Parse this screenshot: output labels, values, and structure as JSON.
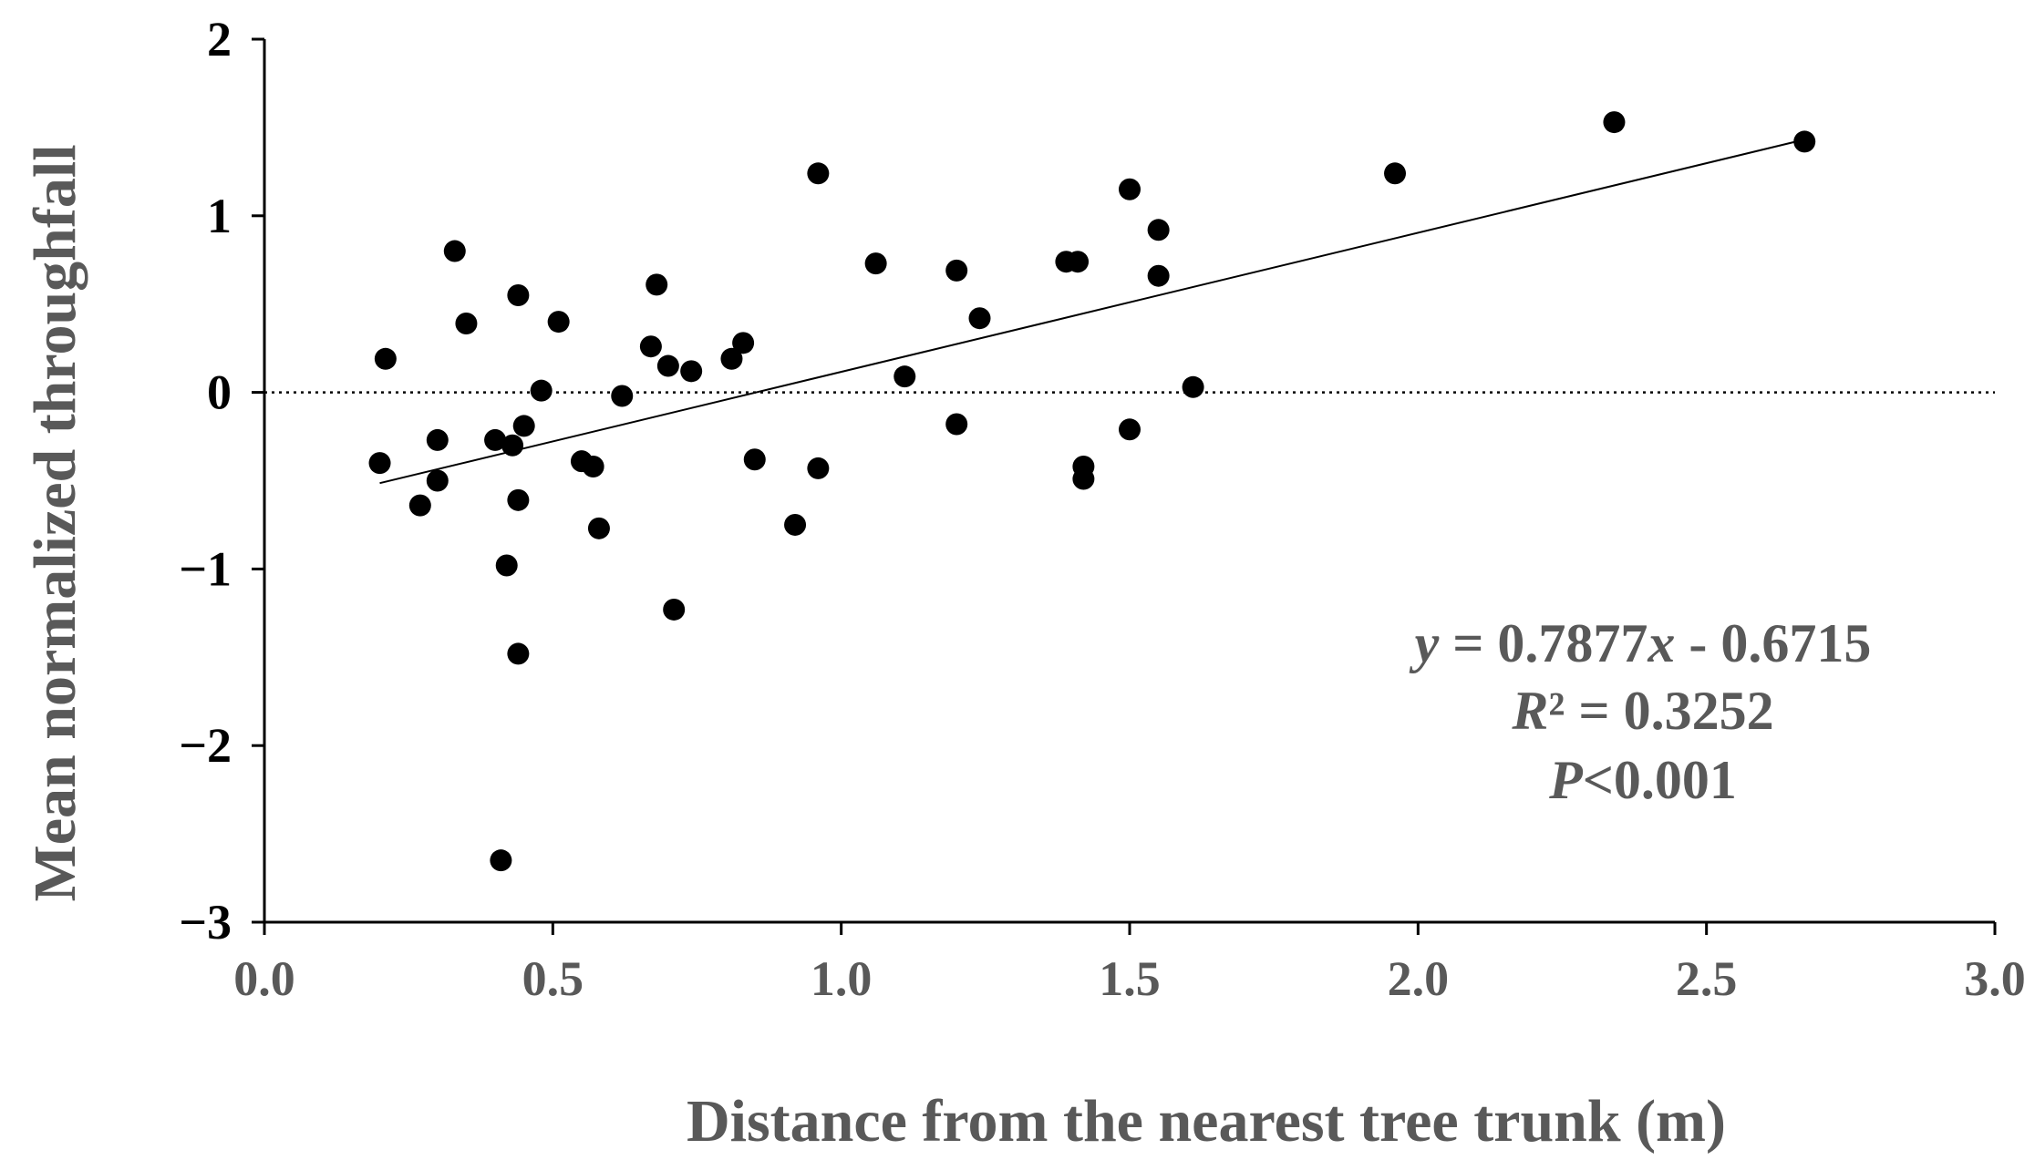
{
  "chart_data": {
    "type": "scatter",
    "title": "",
    "xlabel": "Distance from the nearest tree trunk (m)",
    "ylabel": "Mean normalized throughfall",
    "xlim": [
      0.0,
      3.0
    ],
    "ylim": [
      -3,
      2
    ],
    "xticks": [
      "0.0",
      "0.5",
      "1.0",
      "1.5",
      "2.0",
      "2.5",
      "3.0"
    ],
    "yticks": [
      "2",
      "1",
      "0",
      "−1",
      "−2",
      "−3"
    ],
    "ytick_values": [
      2,
      1,
      0,
      -1,
      -2,
      -3
    ],
    "xtick_values": [
      0.0,
      0.5,
      1.0,
      1.5,
      2.0,
      2.5,
      3.0
    ],
    "grid": false,
    "reference_line_y": 0,
    "trendline": {
      "slope": 0.7877,
      "intercept": -0.6715,
      "x_range": [
        0.2,
        2.67
      ]
    },
    "annotations": {
      "equation_var_y": "y",
      "equation_mid": " = 0.7877",
      "equation_var_x": "x",
      "equation_end": " - 0.6715",
      "r2_var": "R",
      "r2_rest": "² = 0.3252",
      "p_var": "P",
      "p_rest": "<0.001"
    },
    "points": [
      [
        0.2,
        -0.4
      ],
      [
        0.21,
        0.19
      ],
      [
        0.27,
        -0.64
      ],
      [
        0.3,
        -0.27
      ],
      [
        0.3,
        -0.5
      ],
      [
        0.33,
        0.8
      ],
      [
        0.35,
        0.39
      ],
      [
        0.4,
        -0.27
      ],
      [
        0.41,
        -2.65
      ],
      [
        0.42,
        -0.98
      ],
      [
        0.43,
        -0.3
      ],
      [
        0.44,
        0.55
      ],
      [
        0.44,
        -0.61
      ],
      [
        0.44,
        -1.48
      ],
      [
        0.45,
        -0.19
      ],
      [
        0.48,
        0.01
      ],
      [
        0.51,
        0.4
      ],
      [
        0.55,
        -0.39
      ],
      [
        0.57,
        -0.42
      ],
      [
        0.58,
        -0.77
      ],
      [
        0.62,
        -0.02
      ],
      [
        0.67,
        0.26
      ],
      [
        0.68,
        0.61
      ],
      [
        0.7,
        0.15
      ],
      [
        0.71,
        -1.23
      ],
      [
        0.74,
        0.12
      ],
      [
        0.81,
        0.19
      ],
      [
        0.83,
        0.28
      ],
      [
        0.85,
        -0.38
      ],
      [
        0.92,
        -0.75
      ],
      [
        0.96,
        1.24
      ],
      [
        0.96,
        -0.43
      ],
      [
        1.06,
        0.73
      ],
      [
        1.11,
        0.09
      ],
      [
        1.2,
        0.69
      ],
      [
        1.2,
        -0.18
      ],
      [
        1.24,
        0.42
      ],
      [
        1.39,
        0.74
      ],
      [
        1.41,
        0.74
      ],
      [
        1.42,
        -0.42
      ],
      [
        1.42,
        -0.49
      ],
      [
        1.5,
        1.15
      ],
      [
        1.5,
        -0.21
      ],
      [
        1.55,
        0.92
      ],
      [
        1.55,
        0.66
      ],
      [
        1.61,
        0.03
      ],
      [
        1.96,
        1.24
      ],
      [
        2.34,
        1.53
      ],
      [
        2.67,
        1.42
      ]
    ]
  }
}
